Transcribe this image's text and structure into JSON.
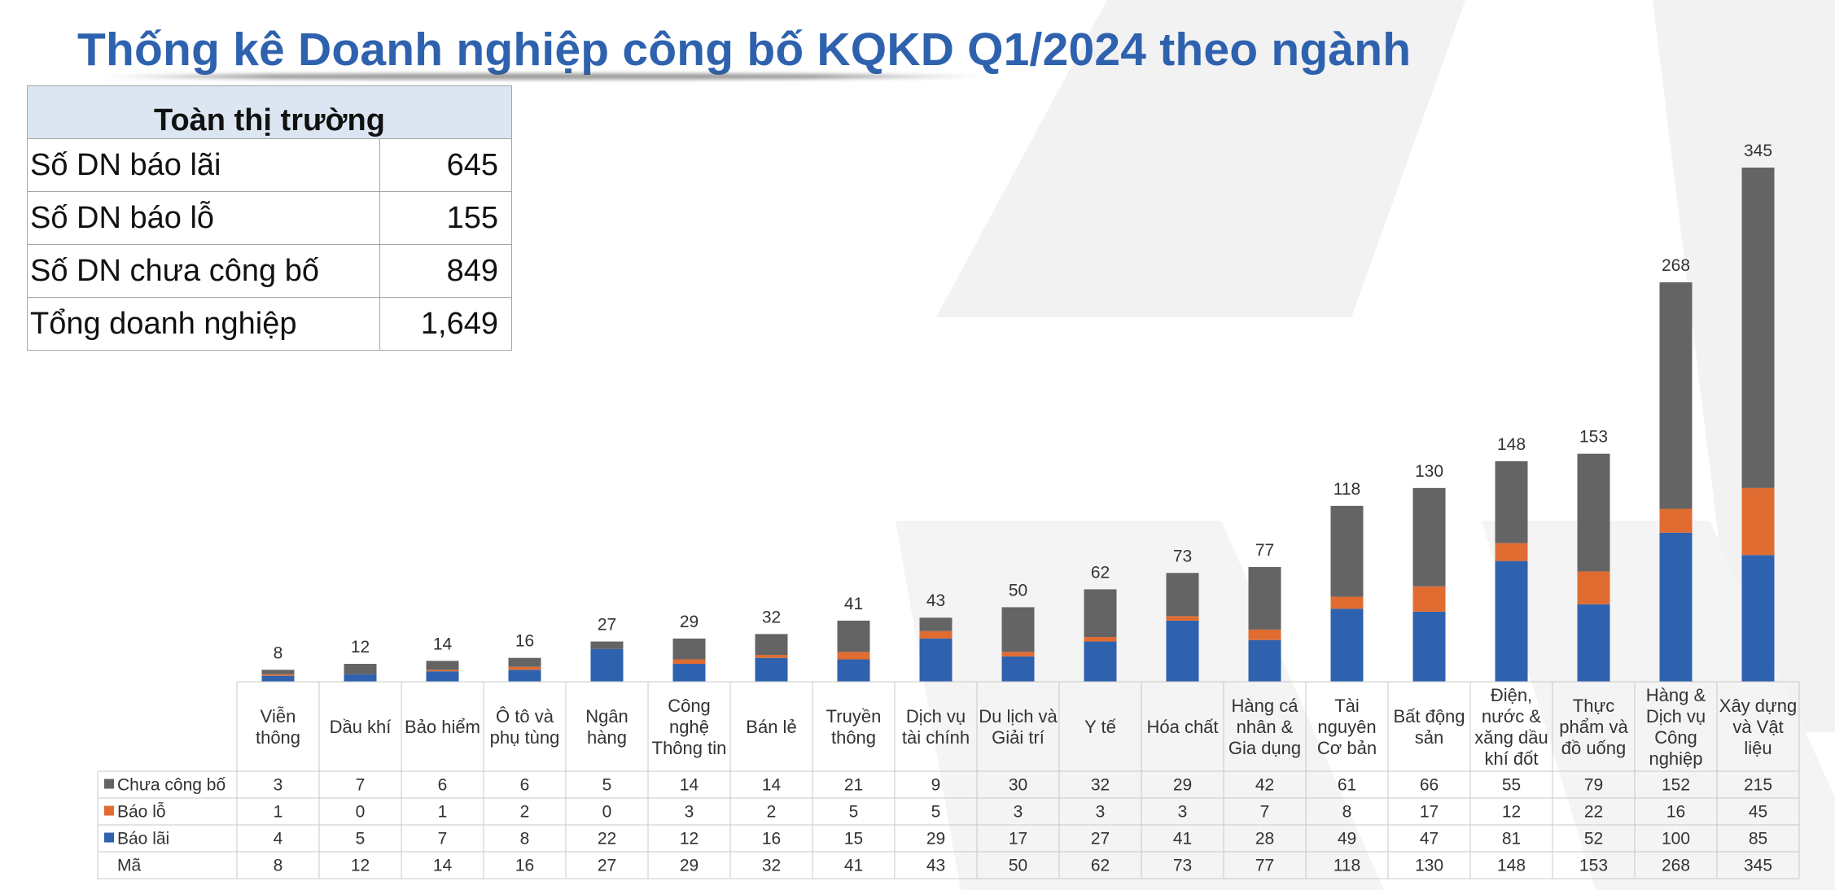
{
  "title": "Thống kê Doanh nghiệp công bố KQKD Q1/2024 theo ngành",
  "summary": {
    "header": "Toàn thị trường",
    "rows": [
      {
        "label": "Số DN báo lãi",
        "value": "645"
      },
      {
        "label": "Số DN báo lỗ",
        "value": "155"
      },
      {
        "label": "Số DN chưa công bố",
        "value": "849"
      },
      {
        "label": "Tổng doanh nghiệp",
        "value": "1,649"
      }
    ]
  },
  "colors": {
    "title": "#2e62ae",
    "bao_lai": "#2e62ae",
    "bao_lo": "#e06c32",
    "chua_cong_bo": "#646464",
    "grid": "#c8c8c8"
  },
  "chart_data": {
    "type": "bar",
    "stacked": true,
    "title": "",
    "xlabel": "",
    "ylabel": "",
    "ylim": [
      0,
      345
    ],
    "grid": false,
    "legend_placement": "table-left",
    "categories": [
      [
        "Viễn",
        "thông"
      ],
      [
        "Dầu khí"
      ],
      [
        "Bảo hiểm"
      ],
      [
        "Ô tô và",
        "phụ tùng"
      ],
      [
        "Ngân",
        "hàng"
      ],
      [
        "Công",
        "nghệ",
        "Thông tin"
      ],
      [
        "Bán lẻ"
      ],
      [
        "Truyền",
        "thông"
      ],
      [
        "Dịch vụ",
        "tài chính"
      ],
      [
        "Du lịch và",
        "Giải trí"
      ],
      [
        "Y tế"
      ],
      [
        "Hóa chất"
      ],
      [
        "Hàng cá",
        "nhân &",
        "Gia dụng"
      ],
      [
        "Tài",
        "nguyên",
        "Cơ bản"
      ],
      [
        "Bất động",
        "sản"
      ],
      [
        "Điện,",
        "nước &",
        "xăng dầu",
        "khí đốt"
      ],
      [
        "Thực",
        "phẩm và",
        "đồ uống"
      ],
      [
        "Hàng &",
        "Dịch vụ",
        "Công",
        "nghiệp"
      ],
      [
        "Xây dựng",
        "và Vật",
        "liệu"
      ]
    ],
    "series": [
      {
        "name": "Chưa công bố",
        "color_key": "chua_cong_bo",
        "values": [
          3,
          7,
          6,
          6,
          5,
          14,
          14,
          21,
          9,
          30,
          32,
          29,
          42,
          61,
          66,
          55,
          79,
          152,
          215
        ]
      },
      {
        "name": "Báo lỗ",
        "color_key": "bao_lo",
        "values": [
          1,
          0,
          1,
          2,
          0,
          3,
          2,
          5,
          5,
          3,
          3,
          3,
          7,
          8,
          17,
          12,
          22,
          16,
          45
        ]
      },
      {
        "name": "Báo lãi",
        "color_key": "bao_lai",
        "values": [
          4,
          5,
          7,
          8,
          22,
          12,
          16,
          15,
          29,
          17,
          27,
          41,
          28,
          49,
          47,
          81,
          52,
          100,
          85
        ]
      }
    ],
    "totals_row": {
      "name": "Mã",
      "values": [
        8,
        12,
        14,
        16,
        27,
        29,
        32,
        41,
        43,
        50,
        62,
        73,
        77,
        118,
        130,
        148,
        153,
        268,
        345
      ]
    },
    "total_labels": [
      8,
      12,
      14,
      16,
      27,
      29,
      32,
      41,
      43,
      50,
      62,
      73,
      77,
      118,
      130,
      148,
      153,
      268,
      345
    ]
  }
}
